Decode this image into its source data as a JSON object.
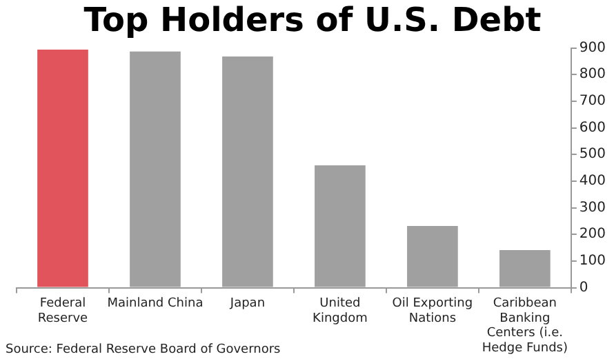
{
  "chart_data": {
    "type": "bar",
    "title": "Top Holders of U.S. Debt",
    "categories": [
      "Federal\nReserve",
      "Mainland China",
      "Japan",
      "United\nKingdom",
      "Oil Exporting\nNations",
      "Caribbean\nBanking\nCenters (i.e.\nHedge Funds)"
    ],
    "values": [
      894,
      887,
      868,
      459,
      232,
      141
    ],
    "colors": [
      "#e2545c",
      "#a0a0a0",
      "#a0a0a0",
      "#a0a0a0",
      "#a0a0a0",
      "#a0a0a0"
    ],
    "ylim": [
      0,
      900
    ],
    "yticks": [
      0,
      100,
      200,
      300,
      400,
      500,
      600,
      700,
      800,
      900
    ],
    "grid": false,
    "legend": false,
    "annotations": [
      "Source: Federal Reserve Board of Governors"
    ]
  }
}
